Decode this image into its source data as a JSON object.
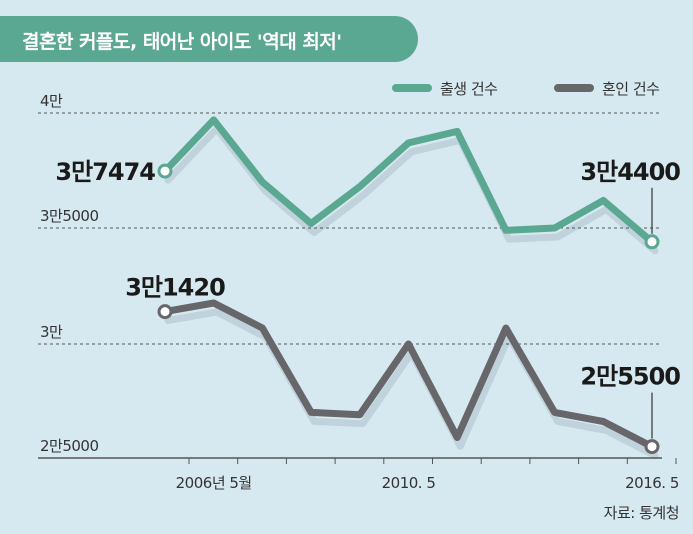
{
  "title": "결혼한 커플도, 태어난 아이도 '역대 최저'",
  "source": "자료: 통계청",
  "chart_data": {
    "type": "line",
    "title": "결혼한 커플도, 태어난 아이도 '역대 최저'",
    "y_gridlines": [
      {
        "label": "4만",
        "value": 40000
      },
      {
        "label": "3만5000",
        "value": 35000
      },
      {
        "label": "3만",
        "value": 30000
      },
      {
        "label": "2만5000",
        "value": 25000
      }
    ],
    "x_tick_labels": [
      {
        "label": "2006년 5월",
        "index": 1
      },
      {
        "label": "2010. 5",
        "index": 5
      },
      {
        "label": "2016. 5",
        "index": 10
      }
    ],
    "legend_placement": "top-right",
    "series": [
      {
        "name": "출생 건수",
        "color": "#5ba892",
        "values": [
          37474,
          39700,
          37000,
          35200,
          36800,
          38700,
          39200,
          34900,
          35000,
          36200,
          34400
        ],
        "labels": [
          {
            "index": 0,
            "text": "3만7474"
          },
          {
            "index": 10,
            "text": "3만4400"
          }
        ]
      },
      {
        "name": "혼인 건수",
        "color": "#67666b",
        "values": [
          31420,
          31800,
          30700,
          27000,
          26900,
          30000,
          25900,
          30700,
          27000,
          26600,
          25500
        ],
        "labels": [
          {
            "index": 0,
            "text": "3만1420"
          },
          {
            "index": 10,
            "text": "2만5500"
          }
        ]
      }
    ]
  }
}
